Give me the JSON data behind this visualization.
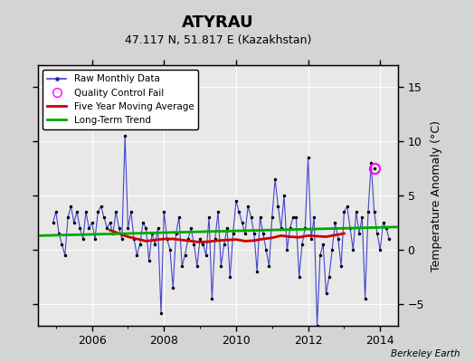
{
  "title": "ATYRAU",
  "subtitle": "47.117 N, 51.817 E (Kazakhstan)",
  "ylabel": "Temperature Anomaly (°C)",
  "credit": "Berkeley Earth",
  "xlim": [
    2004.5,
    2014.5
  ],
  "ylim": [
    -7,
    17
  ],
  "yticks": [
    -5,
    0,
    5,
    10,
    15
  ],
  "xticks": [
    2006,
    2008,
    2010,
    2012,
    2014
  ],
  "bg_color": "#d4d4d4",
  "plot_bg_color": "#e8e8e8",
  "grid_color": "#ffffff",
  "blue_line_color": "#4444cc",
  "red_line_color": "#cc0000",
  "green_line_color": "#00aa00",
  "raw_times": [
    2004.917,
    2005.0,
    2005.083,
    2005.167,
    2005.25,
    2005.333,
    2005.417,
    2005.5,
    2005.583,
    2005.667,
    2005.75,
    2005.833,
    2005.917,
    2006.0,
    2006.083,
    2006.167,
    2006.25,
    2006.333,
    2006.417,
    2006.5,
    2006.583,
    2006.667,
    2006.75,
    2006.833,
    2006.917,
    2007.0,
    2007.083,
    2007.167,
    2007.25,
    2007.333,
    2007.417,
    2007.5,
    2007.583,
    2007.667,
    2007.75,
    2007.833,
    2007.917,
    2008.0,
    2008.083,
    2008.167,
    2008.25,
    2008.333,
    2008.417,
    2008.5,
    2008.583,
    2008.667,
    2008.75,
    2008.833,
    2008.917,
    2009.0,
    2009.083,
    2009.167,
    2009.25,
    2009.333,
    2009.417,
    2009.5,
    2009.583,
    2009.667,
    2009.75,
    2009.833,
    2009.917,
    2010.0,
    2010.083,
    2010.167,
    2010.25,
    2010.333,
    2010.417,
    2010.5,
    2010.583,
    2010.667,
    2010.75,
    2010.833,
    2010.917,
    2011.0,
    2011.083,
    2011.167,
    2011.25,
    2011.333,
    2011.417,
    2011.5,
    2011.583,
    2011.667,
    2011.75,
    2011.833,
    2011.917,
    2012.0,
    2012.083,
    2012.167,
    2012.25,
    2012.333,
    2012.417,
    2012.5,
    2012.583,
    2012.667,
    2012.75,
    2012.833,
    2012.917,
    2013.0,
    2013.083,
    2013.167,
    2013.25,
    2013.333,
    2013.417,
    2013.5,
    2013.583,
    2013.667,
    2013.75,
    2013.833,
    2013.917,
    2014.0,
    2014.083,
    2014.167,
    2014.25
  ],
  "raw_values": [
    2.5,
    3.5,
    1.5,
    0.5,
    -0.5,
    3.0,
    4.0,
    2.5,
    3.5,
    2.0,
    1.0,
    3.5,
    2.0,
    2.5,
    1.0,
    3.5,
    4.0,
    3.0,
    2.0,
    2.5,
    1.5,
    3.5,
    2.0,
    1.0,
    10.5,
    2.0,
    3.5,
    1.0,
    -0.5,
    0.5,
    2.5,
    2.0,
    -1.0,
    1.5,
    0.5,
    2.0,
    -5.8,
    3.5,
    1.0,
    0.0,
    -3.5,
    1.5,
    3.0,
    -1.5,
    -0.5,
    1.0,
    2.0,
    0.5,
    -1.5,
    1.0,
    0.5,
    -0.5,
    3.0,
    -4.5,
    1.0,
    3.5,
    -1.5,
    0.5,
    2.0,
    -2.5,
    1.5,
    4.5,
    3.5,
    2.5,
    1.5,
    4.0,
    3.0,
    1.5,
    -2.0,
    3.0,
    1.5,
    0.0,
    -1.5,
    3.0,
    6.5,
    4.0,
    2.0,
    5.0,
    0.0,
    2.0,
    3.0,
    3.0,
    -2.5,
    0.5,
    2.0,
    8.5,
    1.0,
    3.0,
    -7.0,
    -0.5,
    0.5,
    -4.0,
    -2.5,
    0.0,
    2.5,
    1.0,
    -1.5,
    3.5,
    4.0,
    2.0,
    0.0,
    3.5,
    1.5,
    3.0,
    -4.5,
    3.5,
    8.0,
    3.5,
    1.5,
    0.0,
    2.5,
    2.0,
    1.0
  ],
  "mavg_times": [
    2006.5,
    2006.75,
    2007.0,
    2007.25,
    2007.5,
    2007.75,
    2008.0,
    2008.25,
    2008.5,
    2008.75,
    2009.0,
    2009.25,
    2009.5,
    2009.75,
    2010.0,
    2010.25,
    2010.5,
    2010.75,
    2011.0,
    2011.25,
    2011.5,
    2011.75,
    2012.0,
    2012.25,
    2012.5,
    2012.75,
    2013.0
  ],
  "mavg_values": [
    1.8,
    1.5,
    1.2,
    1.0,
    0.8,
    0.9,
    1.0,
    1.0,
    0.9,
    0.8,
    0.7,
    0.75,
    0.85,
    0.9,
    0.95,
    0.8,
    0.85,
    1.0,
    1.1,
    1.3,
    1.2,
    1.15,
    1.3,
    1.25,
    1.2,
    1.35,
    1.5
  ],
  "trend_times": [
    2004.5,
    2014.5
  ],
  "trend_values": [
    1.3,
    2.1
  ],
  "qc_time": 2013.833,
  "qc_value": 7.5
}
